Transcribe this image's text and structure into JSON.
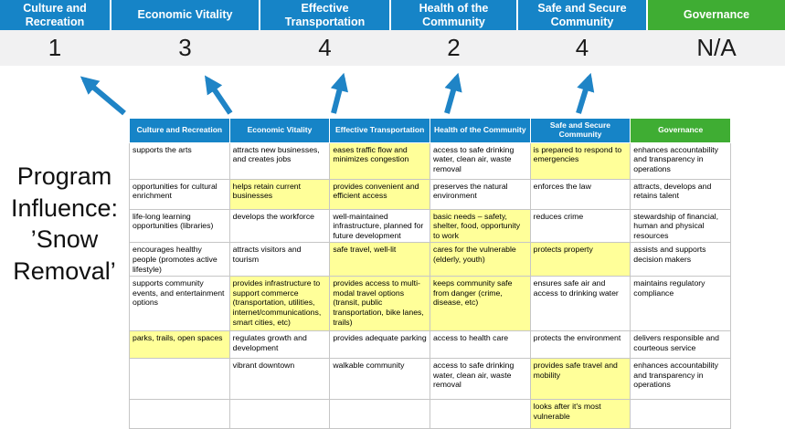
{
  "title": "Program Influence: ’Snow Removal’",
  "colors": {
    "blue": "#1684C7",
    "green": "#3FAD33",
    "highlight": "#FFFF99",
    "score_band_bg": "#F1F1F2",
    "arrow": "#1F84C6"
  },
  "scorebar": {
    "columns": [
      {
        "label": "Culture and Recreation",
        "score": "1",
        "color": "#1684C7"
      },
      {
        "label": "Economic Vitality",
        "score": "3",
        "color": "#1684C7"
      },
      {
        "label": "Effective Transportation",
        "score": "4",
        "color": "#1684C7"
      },
      {
        "label": "Health of the Community",
        "score": "2",
        "color": "#1684C7"
      },
      {
        "label": "Safe and Secure Community",
        "score": "4",
        "color": "#1684C7"
      },
      {
        "label": "Governance",
        "score": "N/A",
        "color": "#3FAD33"
      }
    ]
  },
  "table": {
    "headers": [
      {
        "label": "Culture and Recreation",
        "color": "#1684C7"
      },
      {
        "label": "Economic Vitality",
        "color": "#1684C7"
      },
      {
        "label": "Effective Transportation",
        "color": "#1684C7"
      },
      {
        "label": "Health of the Community",
        "color": "#1684C7"
      },
      {
        "label": "Safe and Secure Community",
        "color": "#1684C7"
      },
      {
        "label": "Governance",
        "color": "#3FAD33"
      }
    ],
    "rows": [
      [
        {
          "t": "supports the arts",
          "h": false
        },
        {
          "t": "attracts new businesses, and creates jobs",
          "h": false
        },
        {
          "t": "eases traffic flow and minimizes congestion",
          "h": true
        },
        {
          "t": "access to safe drinking water, clean air, waste removal",
          "h": false
        },
        {
          "t": "is prepared to respond to emergencies",
          "h": true
        },
        {
          "t": "enhances accountability and transparency in operations",
          "h": false
        }
      ],
      [
        {
          "t": "opportunities for cultural enrichment",
          "h": false
        },
        {
          "t": "helps retain current businesses",
          "h": true
        },
        {
          "t": "provides convenient and efficient access",
          "h": true
        },
        {
          "t": "preserves the natural environment",
          "h": false
        },
        {
          "t": "enforces the law",
          "h": false
        },
        {
          "t": "attracts, develops and retains talent",
          "h": false
        }
      ],
      [
        {
          "t": "life-long learning opportunities (libraries)",
          "h": false
        },
        {
          "t": "develops the workforce",
          "h": false
        },
        {
          "t": "well-maintained infrastructure, planned for future development",
          "h": false
        },
        {
          "t": "basic needs – safety, shelter, food, opportunity to work",
          "h": true
        },
        {
          "t": "reduces crime",
          "h": false
        },
        {
          "t": "stewardship of financial, human and physical resources",
          "h": false
        }
      ],
      [
        {
          "t": "encourages healthy people (promotes active lifestyle)",
          "h": false
        },
        {
          "t": "attracts visitors and tourism",
          "h": false
        },
        {
          "t": "safe travel, well-lit",
          "h": true
        },
        {
          "t": "cares for the vulnerable (elderly, youth)",
          "h": true
        },
        {
          "t": "protects property",
          "h": true
        },
        {
          "t": "assists and supports decision makers",
          "h": false
        }
      ],
      [
        {
          "t": "supports community events, and entertainment options",
          "h": false
        },
        {
          "t": "provides infrastructure to support commerce (transportation, utilities, internet/communications, smart cities, etc)",
          "h": true
        },
        {
          "t": "provides access to multi-modal travel options (transit, public transportation, bike lanes, trails)",
          "h": true
        },
        {
          "t": "keeps community safe from danger (crime, disease, etc)",
          "h": true
        },
        {
          "t": "ensures safe air and access to drinking water",
          "h": false
        },
        {
          "t": "maintains regulatory compliance",
          "h": false
        }
      ],
      [
        {
          "t": "parks, trails, open spaces",
          "h": true
        },
        {
          "t": "regulates growth and development",
          "h": false
        },
        {
          "t": "provides adequate parking",
          "h": false
        },
        {
          "t": "access to health care",
          "h": false
        },
        {
          "t": "protects the environment",
          "h": false
        },
        {
          "t": "delivers responsible and courteous service",
          "h": false
        }
      ],
      [
        {
          "t": "",
          "h": false
        },
        {
          "t": "vibrant downtown",
          "h": false
        },
        {
          "t": "walkable community",
          "h": false
        },
        {
          "t": "access to safe drinking water, clean air, waste removal",
          "h": false
        },
        {
          "t": "provides safe travel and mobility",
          "h": true
        },
        {
          "t": "enhances accountability and transparency in operations",
          "h": false
        }
      ],
      [
        {
          "t": "",
          "h": false
        },
        {
          "t": "",
          "h": false
        },
        {
          "t": "",
          "h": false
        },
        {
          "t": "",
          "h": false
        },
        {
          "t": "looks after it's most vulnerable",
          "h": true
        },
        {
          "t": "",
          "h": false
        }
      ]
    ]
  }
}
